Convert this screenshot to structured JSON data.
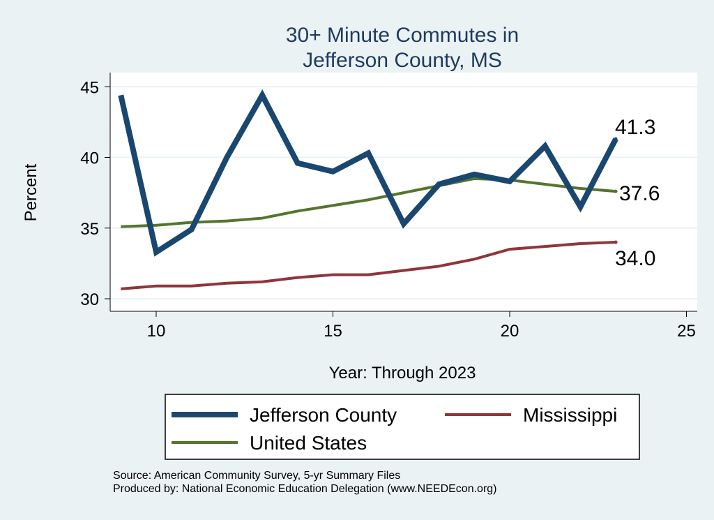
{
  "chart_data": {
    "type": "line",
    "title": [
      "30+ Minute Commutes in",
      "Jefferson County, MS"
    ],
    "xlabel": "Year: Through 2023",
    "ylabel": "Percent",
    "xlim": [
      9,
      25
    ],
    "ylim": [
      30,
      45
    ],
    "xticks": [
      10,
      15,
      20,
      25
    ],
    "yticks": [
      30,
      35,
      40,
      45
    ],
    "grid": true,
    "x": [
      9,
      10,
      11,
      12,
      13,
      14,
      15,
      16,
      17,
      18,
      19,
      20,
      21,
      22,
      23
    ],
    "series": [
      {
        "name": "Jefferson County",
        "color": "#1a476f",
        "values": [
          44.4,
          33.3,
          34.9,
          40.0,
          44.4,
          39.6,
          39.0,
          40.3,
          35.3,
          38.1,
          38.8,
          38.3,
          40.8,
          36.5,
          41.3
        ],
        "end_label": "41.3"
      },
      {
        "name": "Mississippi",
        "color": "#90353b",
        "values": [
          30.7,
          30.9,
          30.9,
          31.1,
          31.2,
          31.5,
          31.7,
          31.7,
          32.0,
          32.3,
          32.8,
          33.5,
          33.7,
          33.9,
          34.0
        ],
        "end_label": "34.0"
      },
      {
        "name": "United States",
        "color": "#55752f",
        "values": [
          35.1,
          35.2,
          35.4,
          35.5,
          35.7,
          36.2,
          36.6,
          37.0,
          37.5,
          38.0,
          38.5,
          38.4,
          38.1,
          37.8,
          37.6
        ],
        "end_label": "37.6"
      }
    ],
    "legend": [
      "Jefferson County",
      "Mississippi",
      "United States"
    ],
    "legend_placement": "bottom"
  },
  "notes": {
    "source": "Source: American Community Survey, 5-yr Summary Files",
    "produced": "Produced by: National Economic Education Delegation (www.NEEDEcon.org)"
  }
}
